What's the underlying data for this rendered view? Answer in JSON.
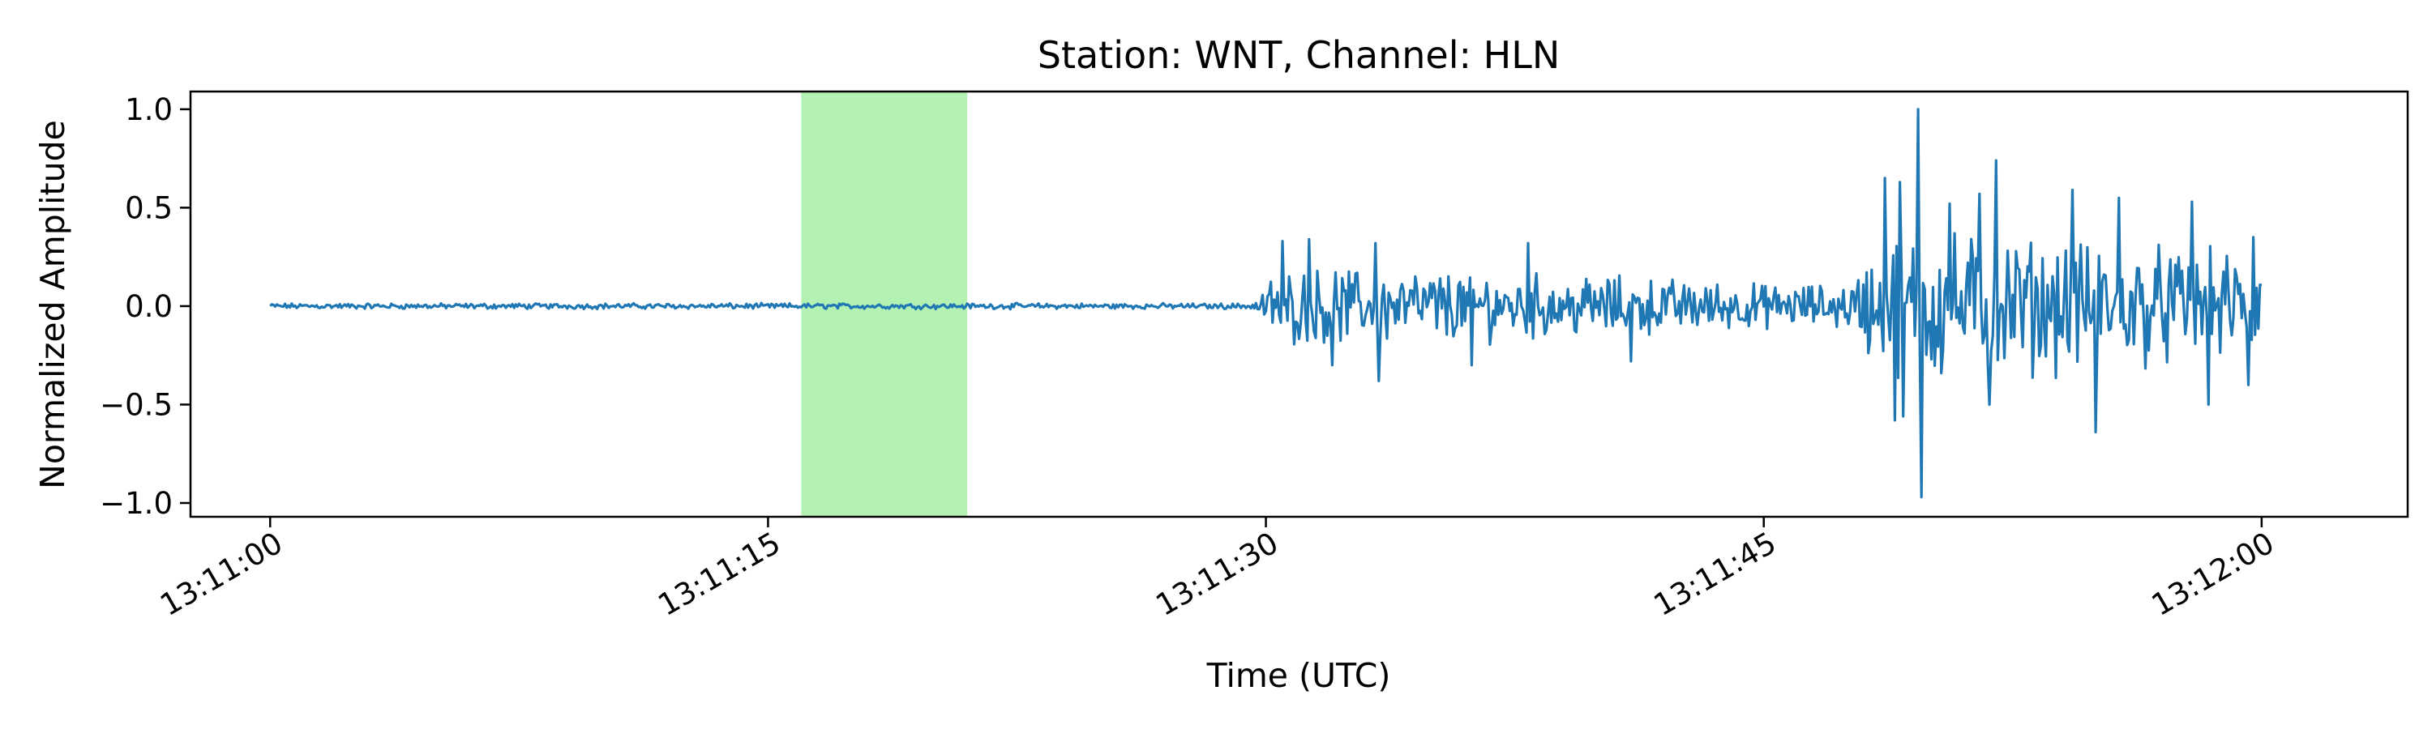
{
  "chart_data": {
    "type": "line",
    "title": "Station: WNT, Channel: HLN",
    "xlabel": "Time (UTC)",
    "ylabel": "Normalized Amplitude",
    "x_range_seconds": [
      -2.4,
      64.4
    ],
    "x_ticks": [
      {
        "t": 0,
        "label": "13:11:00"
      },
      {
        "t": 15,
        "label": "13:11:15"
      },
      {
        "t": 30,
        "label": "13:11:30"
      },
      {
        "t": 45,
        "label": "13:11:45"
      },
      {
        "t": 60,
        "label": "13:12:00"
      }
    ],
    "ylim": [
      -1.07,
      1.09
    ],
    "y_ticks": [
      {
        "v": 1.0,
        "label": "1.0"
      },
      {
        "v": 0.5,
        "label": "0.5"
      },
      {
        "v": 0.0,
        "label": "0.0"
      },
      {
        "v": -0.5,
        "label": "−0.5"
      },
      {
        "v": -1.0,
        "label": "−1.0"
      }
    ],
    "highlight_window": {
      "start": 16.0,
      "end": 21.0,
      "color": "#b3f2b3"
    },
    "series": [
      {
        "color": "#1f77b4",
        "sample_interval_s": 0.05,
        "envelope": [
          [
            0,
            0.012
          ],
          [
            29.5,
            0.012
          ],
          [
            30.3,
            0.15
          ],
          [
            31,
            0.16
          ],
          [
            34,
            0.16
          ],
          [
            38,
            0.14
          ],
          [
            42,
            0.12
          ],
          [
            45.5,
            0.09
          ],
          [
            47.5,
            0.1
          ],
          [
            48.5,
            0.28
          ],
          [
            50,
            0.33
          ],
          [
            52,
            0.3
          ],
          [
            56,
            0.26
          ],
          [
            60,
            0.22
          ]
        ],
        "peaks": [
          {
            "t": 49.65,
            "v": 1.0
          },
          {
            "t": 49.75,
            "v": -0.97
          },
          {
            "t": 49.2,
            "v": -0.56
          },
          {
            "t": 49.1,
            "v": 0.63
          },
          {
            "t": 48.65,
            "v": 0.65
          },
          {
            "t": 48.95,
            "v": -0.58
          },
          {
            "t": 52.0,
            "v": 0.74
          },
          {
            "t": 51.5,
            "v": 0.57
          },
          {
            "t": 51.8,
            "v": -0.5
          },
          {
            "t": 50.6,
            "v": 0.52
          },
          {
            "t": 54.3,
            "v": 0.59
          },
          {
            "t": 55.0,
            "v": -0.64
          },
          {
            "t": 55.7,
            "v": 0.55
          },
          {
            "t": 57.9,
            "v": 0.53
          },
          {
            "t": 58.4,
            "v": -0.5
          },
          {
            "t": 59.6,
            "v": -0.4
          },
          {
            "t": 59.75,
            "v": 0.35
          },
          {
            "t": 30.5,
            "v": 0.33
          },
          {
            "t": 31.3,
            "v": 0.34
          },
          {
            "t": 32.0,
            "v": -0.3
          },
          {
            "t": 33.3,
            "v": 0.32
          },
          {
            "t": 33.4,
            "v": -0.38
          },
          {
            "t": 36.2,
            "v": -0.3
          },
          {
            "t": 37.9,
            "v": 0.32
          },
          {
            "t": 41.0,
            "v": -0.28
          }
        ]
      }
    ]
  }
}
